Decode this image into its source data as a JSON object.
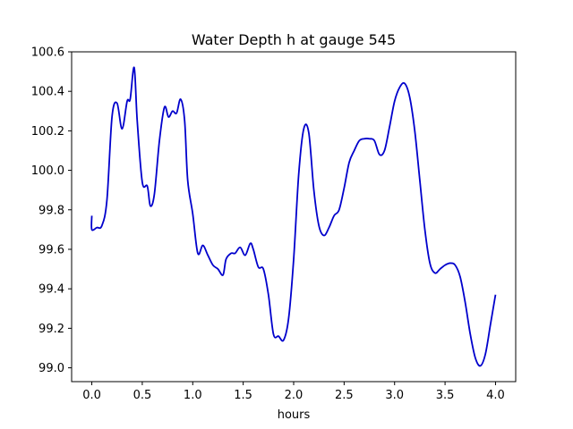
{
  "chart_data": {
    "type": "line",
    "title": "Water Depth h at gauge 545",
    "xlabel": "hours",
    "ylabel": "",
    "xlim": [
      -0.2,
      4.2
    ],
    "ylim": [
      98.93,
      100.6
    ],
    "x_ticks": [
      0.0,
      0.5,
      1.0,
      1.5,
      2.0,
      2.5,
      3.0,
      3.5,
      4.0
    ],
    "x_tick_labels": [
      "0.0",
      "0.5",
      "1.0",
      "1.5",
      "2.0",
      "2.5",
      "3.0",
      "3.5",
      "4.0"
    ],
    "y_ticks": [
      99.0,
      99.2,
      99.4,
      99.6,
      99.8,
      100.0,
      100.2,
      100.4,
      100.6
    ],
    "y_tick_labels": [
      "99.0",
      "99.2",
      "99.4",
      "99.6",
      "99.8",
      "100.0",
      "100.2",
      "100.4",
      "100.6"
    ],
    "grid": false,
    "series": [
      {
        "color": "#0000cc",
        "x": [
          0.0,
          0.0,
          0.05,
          0.1,
          0.15,
          0.2,
          0.25,
          0.3,
          0.35,
          0.38,
          0.42,
          0.45,
          0.5,
          0.55,
          0.58,
          0.62,
          0.67,
          0.72,
          0.76,
          0.8,
          0.84,
          0.88,
          0.92,
          0.95,
          1.0,
          1.05,
          1.1,
          1.15,
          1.2,
          1.25,
          1.3,
          1.33,
          1.38,
          1.42,
          1.47,
          1.52,
          1.57,
          1.6,
          1.65,
          1.7,
          1.75,
          1.8,
          1.85,
          1.9,
          1.95,
          2.0,
          2.05,
          2.1,
          2.15,
          2.2,
          2.25,
          2.3,
          2.35,
          2.4,
          2.45,
          2.5,
          2.55,
          2.6,
          2.65,
          2.7,
          2.75,
          2.8,
          2.85,
          2.9,
          2.95,
          3.0,
          3.05,
          3.1,
          3.15,
          3.2,
          3.25,
          3.3,
          3.35,
          3.4,
          3.45,
          3.5,
          3.55,
          3.6,
          3.65,
          3.7,
          3.75,
          3.8,
          3.85,
          3.9,
          3.95,
          4.0
        ],
        "y": [
          99.77,
          99.7,
          99.71,
          99.72,
          99.85,
          100.27,
          100.34,
          100.21,
          100.35,
          100.36,
          100.52,
          100.25,
          99.94,
          99.92,
          99.82,
          99.88,
          100.15,
          100.32,
          100.27,
          100.3,
          100.29,
          100.36,
          100.25,
          99.95,
          99.78,
          99.58,
          99.62,
          99.57,
          99.52,
          99.5,
          99.47,
          99.55,
          99.58,
          99.58,
          99.61,
          99.57,
          99.63,
          99.6,
          99.51,
          99.5,
          99.37,
          99.17,
          99.16,
          99.14,
          99.25,
          99.55,
          99.98,
          100.21,
          100.19,
          99.9,
          99.72,
          99.67,
          99.71,
          99.77,
          99.8,
          99.91,
          100.04,
          100.1,
          100.15,
          100.16,
          100.16,
          100.15,
          100.08,
          100.1,
          100.22,
          100.35,
          100.42,
          100.44,
          100.37,
          100.2,
          99.95,
          99.7,
          99.53,
          99.48,
          99.5,
          99.52,
          99.53,
          99.52,
          99.46,
          99.33,
          99.17,
          99.05,
          99.01,
          99.07,
          99.22,
          99.37
        ]
      }
    ]
  }
}
